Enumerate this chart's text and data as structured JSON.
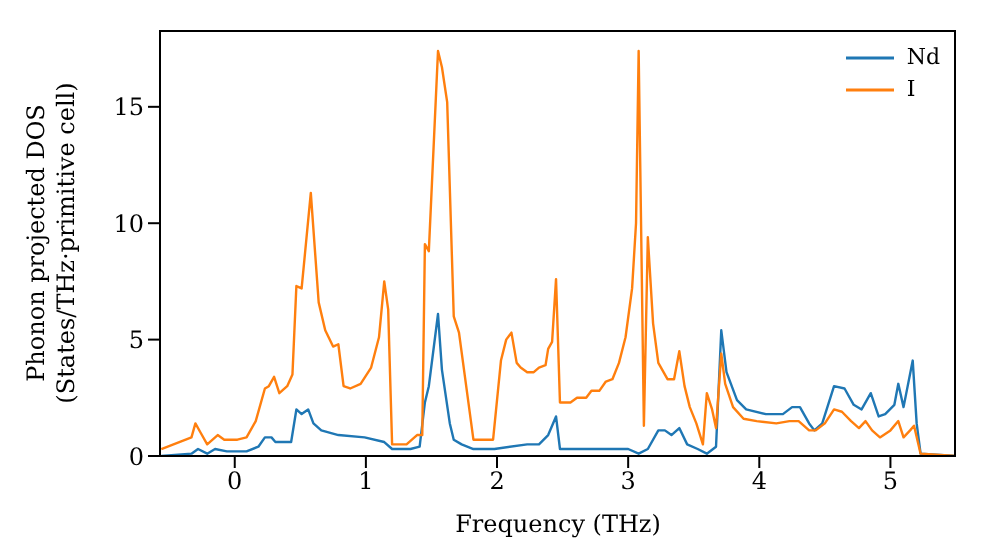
{
  "chart_data": {
    "type": "line",
    "xlabel": "Frequency (THz)",
    "ylabel": "Phonon projected DOS\n(States/THz·primitive cell)",
    "xlim": [
      -0.57,
      5.5
    ],
    "ylim": [
      0,
      18.3
    ],
    "xticks": [
      0,
      1,
      2,
      3,
      4,
      5
    ],
    "yticks": [
      0,
      5,
      10,
      15
    ],
    "grid": false,
    "legend": "top right",
    "marker": "none",
    "line_style": "solid",
    "series": [
      {
        "name": "Nd",
        "color": "#1f77b4",
        "x": [
          -0.56,
          -0.33,
          -0.28,
          -0.21,
          -0.15,
          -0.06,
          0.09,
          0.18,
          0.23,
          0.28,
          0.31,
          0.43,
          0.47,
          0.51,
          0.56,
          0.6,
          0.66,
          0.79,
          0.99,
          1.14,
          1.2,
          1.34,
          1.41,
          1.45,
          1.48,
          1.55,
          1.58,
          1.64,
          1.67,
          1.73,
          1.82,
          1.98,
          2.23,
          2.32,
          2.39,
          2.45,
          2.48,
          3.0,
          3.08,
          3.15,
          3.23,
          3.28,
          3.33,
          3.39,
          3.45,
          3.53,
          3.6,
          3.67,
          3.71,
          3.75,
          3.83,
          3.9,
          4.05,
          4.18,
          4.25,
          4.31,
          4.38,
          4.42,
          4.48,
          4.57,
          4.65,
          4.72,
          4.78,
          4.85,
          4.91,
          4.96,
          5.03,
          5.06,
          5.1,
          5.17,
          5.2,
          5.23,
          5.5
        ],
        "values": [
          0,
          0.1,
          0.3,
          0.1,
          0.3,
          0.2,
          0.2,
          0.4,
          0.8,
          0.8,
          0.6,
          0.6,
          2.0,
          1.8,
          2.0,
          1.4,
          1.1,
          0.9,
          0.8,
          0.6,
          0.3,
          0.3,
          0.4,
          2.3,
          3.0,
          6.1,
          3.7,
          1.4,
          0.7,
          0.5,
          0.3,
          0.3,
          0.5,
          0.5,
          0.9,
          1.7,
          0.3,
          0.3,
          0.1,
          0.3,
          1.1,
          1.1,
          0.9,
          1.2,
          0.5,
          0.3,
          0.1,
          0.4,
          5.4,
          3.6,
          2.4,
          2.0,
          1.8,
          1.8,
          2.1,
          2.1,
          1.4,
          1.1,
          1.4,
          3.0,
          2.9,
          2.2,
          2.0,
          2.7,
          1.7,
          1.8,
          2.2,
          3.1,
          2.1,
          4.1,
          1.4,
          0.1,
          0
        ]
      },
      {
        "name": "I",
        "color": "#ff7f0e",
        "x": [
          -0.56,
          -0.33,
          -0.3,
          -0.26,
          -0.21,
          -0.13,
          -0.08,
          0.02,
          0.09,
          0.16,
          0.23,
          0.26,
          0.3,
          0.34,
          0.4,
          0.44,
          0.47,
          0.51,
          0.58,
          0.64,
          0.69,
          0.75,
          0.79,
          0.83,
          0.88,
          0.96,
          1.04,
          1.1,
          1.14,
          1.17,
          1.2,
          1.31,
          1.39,
          1.43,
          1.45,
          1.48,
          1.55,
          1.58,
          1.62,
          1.67,
          1.71,
          1.82,
          1.97,
          2.03,
          2.07,
          2.11,
          2.15,
          2.18,
          2.23,
          2.28,
          2.32,
          2.37,
          2.39,
          2.42,
          2.45,
          2.48,
          2.56,
          2.61,
          2.68,
          2.72,
          2.78,
          2.83,
          2.88,
          2.93,
          2.98,
          3.03,
          3.06,
          3.08,
          3.12,
          3.15,
          3.19,
          3.23,
          3.3,
          3.35,
          3.39,
          3.43,
          3.47,
          3.52,
          3.57,
          3.6,
          3.64,
          3.67,
          3.71,
          3.74,
          3.8,
          3.88,
          3.98,
          4.13,
          4.23,
          4.3,
          4.38,
          4.43,
          4.5,
          4.57,
          4.63,
          4.7,
          4.76,
          4.81,
          4.86,
          4.92,
          5.0,
          5.06,
          5.1,
          5.15,
          5.18,
          5.23,
          5.5
        ],
        "values": [
          0.3,
          0.8,
          1.4,
          1.0,
          0.5,
          0.9,
          0.7,
          0.7,
          0.8,
          1.5,
          2.9,
          3.0,
          3.4,
          2.7,
          3.0,
          3.5,
          7.3,
          7.2,
          11.3,
          6.6,
          5.4,
          4.7,
          4.8,
          3.0,
          2.9,
          3.1,
          3.8,
          5.1,
          7.5,
          6.3,
          0.5,
          0.5,
          0.9,
          0.9,
          9.1,
          8.8,
          17.4,
          16.7,
          15.2,
          6.0,
          5.3,
          0.7,
          0.7,
          4.1,
          5.0,
          5.3,
          4.0,
          3.8,
          3.6,
          3.6,
          3.8,
          3.9,
          4.6,
          4.9,
          7.6,
          2.3,
          2.3,
          2.5,
          2.5,
          2.8,
          2.8,
          3.2,
          3.3,
          4.0,
          5.1,
          7.2,
          10.0,
          17.4,
          1.3,
          9.4,
          5.7,
          4.0,
          3.3,
          3.3,
          4.5,
          3.0,
          2.1,
          1.4,
          0.5,
          2.7,
          2.0,
          1.2,
          4.4,
          3.1,
          2.1,
          1.6,
          1.5,
          1.4,
          1.5,
          1.5,
          1.1,
          1.1,
          1.4,
          2.0,
          1.9,
          1.5,
          1.2,
          1.5,
          1.1,
          0.8,
          1.1,
          1.5,
          0.8,
          1.1,
          1.3,
          0.1,
          0
        ]
      }
    ]
  }
}
